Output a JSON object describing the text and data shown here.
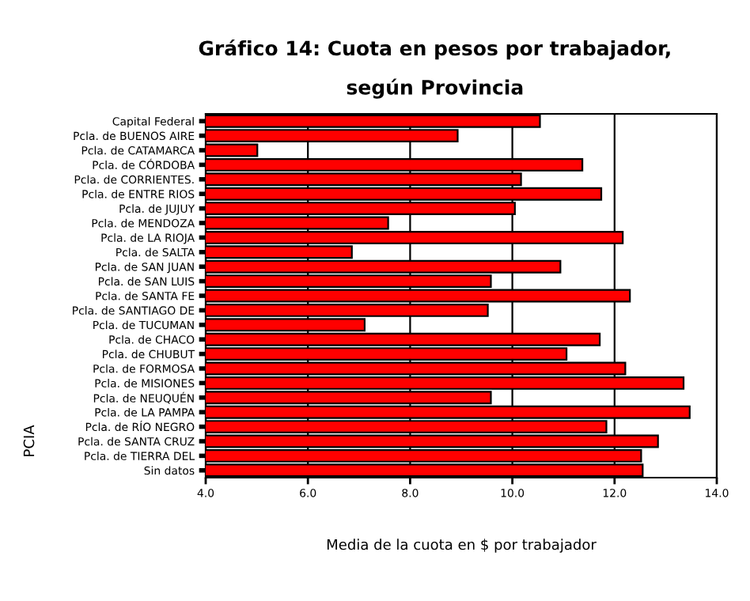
{
  "chart_data": {
    "type": "bar",
    "orientation": "horizontal",
    "title": "Gráfico 14: Cuota en pesos por trabajador,\nsegún Provincia",
    "xlabel": "Media de la cuota en $ por trabajador",
    "ylabel": "PCIA",
    "categories": [
      "Capital Federal",
      "Pcla. de BUENOS AIRE",
      "Pcla. de CATAMARCA",
      "Pcla. de CÓRDOBA",
      "Pcla. de CORRIENTES.",
      "Pcla. de ENTRE RIOS",
      "Pcla. de JUJUY",
      "Pcla. de MENDOZA",
      "Pcla. de LA RIOJA",
      "Pcla. de SALTA",
      "Pcla. de SAN JUAN",
      "Pcla. de SAN LUIS",
      "Pcla. de SANTA FE",
      "Pcla. de SANTIAGO DE",
      "Pcla. de TUCUMAN",
      "Pcla. de CHACO",
      "Pcla. de CHUBUT",
      "Pcla. de FORMOSA",
      "Pcla. de MISIONES",
      "Pcla. de NEUQUÉN",
      "Pcla. de LA PAMPA",
      "Pcla. de RÍO NEGRO",
      "Pcla. de SANTA CRUZ",
      "Pcla. de TIERRA DEL",
      "Sin datos"
    ],
    "values": [
      10.54,
      8.93,
      5.01,
      11.37,
      10.17,
      11.74,
      10.05,
      7.57,
      12.16,
      6.86,
      10.94,
      9.58,
      12.3,
      9.52,
      7.11,
      11.71,
      11.06,
      12.21,
      13.35,
      9.58,
      13.47,
      11.84,
      12.85,
      12.52,
      12.55
    ],
    "color": "#ff0000",
    "xlim": [
      4,
      14
    ],
    "xticks": [
      {
        "value": 4,
        "label": "4.0"
      },
      {
        "value": 6,
        "label": "6.0"
      },
      {
        "value": 8,
        "label": "8.0"
      },
      {
        "value": 10,
        "label": "10.0"
      },
      {
        "value": 12,
        "label": "12.0"
      },
      {
        "value": 14,
        "label": "14.0"
      }
    ],
    "grid": "x"
  }
}
